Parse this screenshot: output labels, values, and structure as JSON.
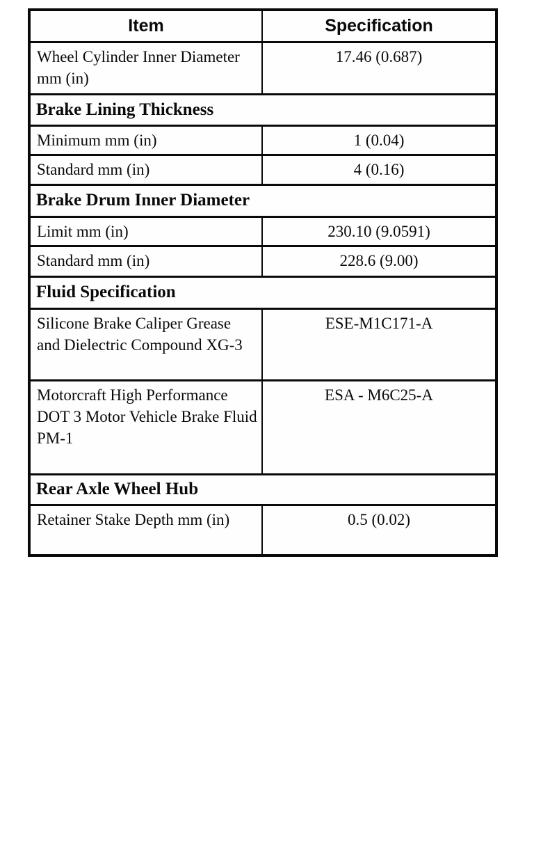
{
  "table": {
    "column_headers": {
      "item": "Item",
      "specification": "Specification"
    },
    "rows": [
      {
        "type": "data",
        "item": "Wheel Cylinder Inner Diameter mm (in)",
        "spec": "17.46 (0.687)"
      },
      {
        "type": "section",
        "title": "Brake Lining Thickness"
      },
      {
        "type": "data",
        "item": "Minimum mm (in)",
        "spec": "1 (0.04)"
      },
      {
        "type": "data",
        "item": "Standard mm (in)",
        "spec": "4 (0.16)"
      },
      {
        "type": "section",
        "title": "Brake Drum Inner Diameter"
      },
      {
        "type": "data",
        "item": "Limit mm (in)",
        "spec": "230.10 (9.0591)"
      },
      {
        "type": "data",
        "item": "Standard mm (in)",
        "spec": "228.6 (9.00)"
      },
      {
        "type": "section",
        "title": "Fluid Specification"
      },
      {
        "type": "data",
        "item": "Silicone Brake Caliper Grease and Dielectric Compound XG-3",
        "spec": "ESE-M1C171-A"
      },
      {
        "type": "data",
        "item": "Motorcraft High Performance DOT 3 Motor Vehicle Brake Fluid PM-1",
        "spec": "ESA - M6C25-A"
      },
      {
        "type": "section",
        "title": "Rear Axle Wheel Hub"
      },
      {
        "type": "data",
        "item": "Retainer Stake Depth mm (in)",
        "spec": "0.5 (0.02)"
      }
    ]
  }
}
